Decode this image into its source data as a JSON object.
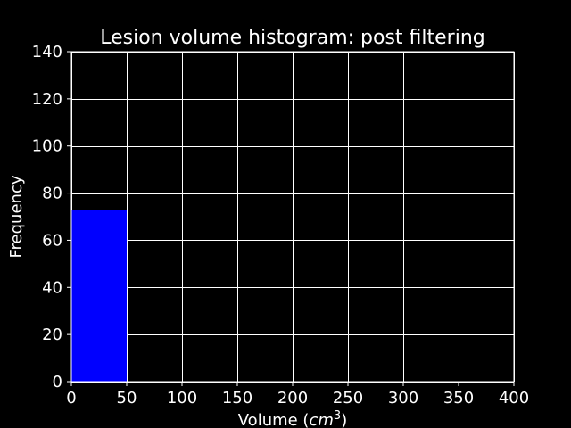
{
  "chart_data": {
    "type": "bar",
    "title": "Lesion volume histogram: post filtering",
    "xlabel_prefix": "Volume (",
    "xlabel_unit_base": "cm",
    "xlabel_unit_exp": "3",
    "xlabel_suffix": ")",
    "ylabel": "Frequency",
    "xlim": [
      0,
      400
    ],
    "ylim": [
      0,
      140
    ],
    "xticks": [
      0,
      50,
      100,
      150,
      200,
      250,
      300,
      350,
      400
    ],
    "yticks": [
      0,
      20,
      40,
      60,
      80,
      100,
      120,
      140
    ],
    "bins": [
      {
        "x0": 0,
        "x1": 50,
        "value": 73
      }
    ],
    "grid": true,
    "bar_color": "#0000ff",
    "background": "#000000",
    "foreground": "#ffffff"
  }
}
